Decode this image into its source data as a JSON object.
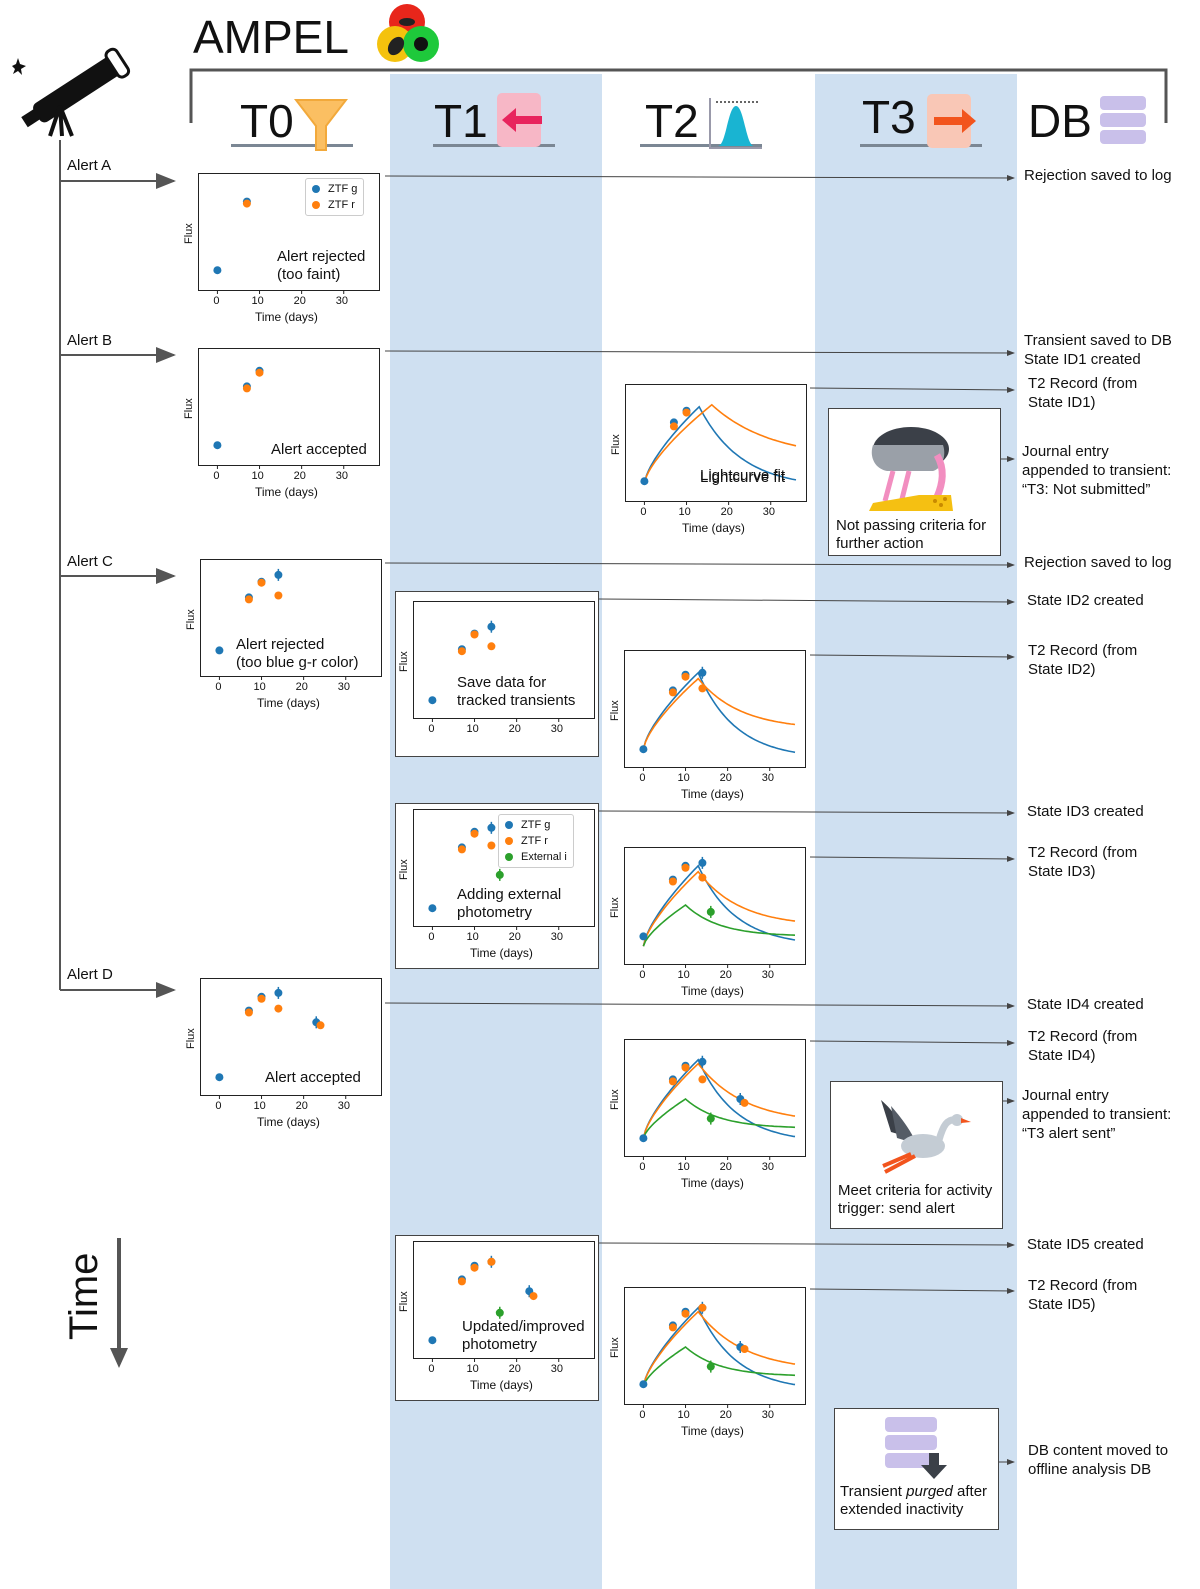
{
  "title": "AMPEL",
  "columns": [
    {
      "label": "T0"
    },
    {
      "label": "T1"
    },
    {
      "label": "T2"
    },
    {
      "label": "T3"
    },
    {
      "label": "DB"
    }
  ],
  "time_label": "Time",
  "alerts": [
    "Alert A",
    "Alert B",
    "Alert C",
    "Alert D"
  ],
  "right_notes": [
    "Rejection saved to log",
    "Transient saved to DB\nState ID1 created",
    "T2 Record (from\nState ID1)",
    "Journal entry\nappended to transient:\n“T3: Not submitted”",
    "Rejection saved to log",
    "State ID2 created",
    "T2 Record (from\nState ID2)",
    "State ID3 created",
    "T2 Record (from\nState ID3)",
    "State ID4 created",
    "T2 Record (from\nState ID4)",
    "Journal entry\nappended to transient:\n“T3 alert sent”",
    "State ID5 created",
    "T2 Record (from\nState ID5)",
    "DB content moved to\noffline analysis DB"
  ],
  "t3_boxes": [
    {
      "pre": "Not passing criteria for\nfurther action",
      "em": "",
      "post": ""
    },
    {
      "pre": "Meet criteria for activity\ntrigger: send alert",
      "em": "",
      "post": ""
    },
    {
      "pre": "Transient ",
      "em": "purged",
      "post": " after\nextended inactivity"
    }
  ],
  "axis": {
    "flux": "Flux",
    "time": "Time (days)",
    "ticks": [
      "0",
      "10",
      "20",
      "30"
    ]
  },
  "legend_ztf": [
    "ZTF g",
    "ZTF r"
  ],
  "legend_ext": [
    "ZTF g",
    "ZTF r",
    "External i"
  ],
  "colors": {
    "g": "#1f77b4",
    "r": "#ff7f0e",
    "i": "#2ca02c",
    "band": "#cfe0f1"
  },
  "chart_data": [
    {
      "type": "scatter",
      "title": "Alert rejected\n(too faint)",
      "xlabel": "Time (days)",
      "ylabel": "Flux",
      "xlim": [
        -2,
        36
      ],
      "ylim": [
        0,
        1
      ],
      "series": [
        {
          "name": "ZTF g",
          "x": [
            0,
            7
          ],
          "y": [
            0.12,
            0.82
          ]
        },
        {
          "name": "ZTF r",
          "x": [
            7
          ],
          "y": [
            0.8
          ]
        }
      ]
    },
    {
      "type": "scatter",
      "title": "Alert accepted",
      "xlabel": "Time (days)",
      "ylabel": "Flux",
      "xlim": [
        -2,
        36
      ],
      "ylim": [
        0,
        1
      ],
      "series": [
        {
          "name": "ZTF g",
          "x": [
            0,
            7,
            10
          ],
          "y": [
            0.12,
            0.72,
            0.88
          ]
        },
        {
          "name": "ZTF r",
          "x": [
            7,
            10
          ],
          "y": [
            0.7,
            0.86
          ]
        }
      ]
    },
    {
      "type": "line",
      "title": "Lightcurve fit",
      "xlabel": "Time (days)",
      "ylabel": "Flux",
      "xlim": [
        -2,
        36
      ],
      "ylim": [
        0,
        1
      ],
      "series": [
        {
          "name": "ZTF g",
          "x": [
            0,
            7,
            10
          ],
          "y": [
            0.12,
            0.72,
            0.84
          ]
        },
        {
          "name": "ZTF r",
          "x": [
            7,
            10
          ],
          "y": [
            0.68,
            0.82
          ]
        }
      ]
    },
    {
      "type": "scatter",
      "title": "Alert rejected\n(too blue g-r color)",
      "xlabel": "Time (days)",
      "ylabel": "Flux",
      "xlim": [
        -2,
        36
      ],
      "ylim": [
        0,
        1
      ],
      "series": [
        {
          "name": "ZTF g",
          "x": [
            0,
            7,
            10,
            14
          ],
          "y": [
            0.18,
            0.72,
            0.88,
            0.95
          ]
        },
        {
          "name": "ZTF r",
          "x": [
            7,
            10,
            14
          ],
          "y": [
            0.7,
            0.87,
            0.74
          ]
        }
      ]
    },
    {
      "type": "scatter",
      "title": "Save data for\ntracked transients",
      "xlabel": "",
      "ylabel": "Flux",
      "xlim": [
        -2,
        36
      ],
      "ylim": [
        0,
        1
      ],
      "series": [
        {
          "name": "ZTF g",
          "x": [
            0,
            7,
            10,
            14
          ],
          "y": [
            0.1,
            0.62,
            0.78,
            0.85
          ]
        },
        {
          "name": "ZTF r",
          "x": [
            7,
            10,
            14
          ],
          "y": [
            0.6,
            0.77,
            0.65
          ]
        }
      ]
    },
    {
      "type": "line",
      "title": "",
      "xlabel": "Time (days)",
      "ylabel": "Flux",
      "xlim": [
        -2,
        36
      ],
      "ylim": [
        0,
        1
      ],
      "series": [
        {
          "name": "ZTF g",
          "x": [
            0,
            7,
            10,
            14
          ],
          "y": [
            0.1,
            0.7,
            0.86,
            0.88
          ]
        },
        {
          "name": "ZTF r",
          "x": [
            7,
            10,
            14
          ],
          "y": [
            0.68,
            0.84,
            0.72
          ]
        }
      ]
    },
    {
      "type": "scatter",
      "title": "Adding external\nphotometry",
      "xlabel": "Time (days)",
      "ylabel": "Flux",
      "xlim": [
        -2,
        36
      ],
      "ylim": [
        0,
        1
      ],
      "series": [
        {
          "name": "ZTF g",
          "x": [
            0,
            7,
            10,
            14
          ],
          "y": [
            0.1,
            0.72,
            0.88,
            0.92
          ]
        },
        {
          "name": "ZTF r",
          "x": [
            7,
            10,
            14
          ],
          "y": [
            0.7,
            0.86,
            0.74
          ]
        },
        {
          "name": "External i",
          "x": [
            16
          ],
          "y": [
            0.44
          ]
        }
      ]
    },
    {
      "type": "line",
      "title": "",
      "xlabel": "Time (days)",
      "ylabel": "Flux",
      "xlim": [
        -2,
        36
      ],
      "ylim": [
        0,
        1
      ],
      "series": [
        {
          "name": "ZTF g",
          "x": [
            0,
            7,
            10,
            14
          ],
          "y": [
            0.2,
            0.78,
            0.92,
            0.95
          ]
        },
        {
          "name": "ZTF r",
          "x": [
            7,
            10,
            14
          ],
          "y": [
            0.76,
            0.9,
            0.8
          ]
        },
        {
          "name": "External i",
          "x": [
            16
          ],
          "y": [
            0.45
          ]
        }
      ]
    },
    {
      "type": "scatter",
      "title": "Alert accepted",
      "xlabel": "Time (days)",
      "ylabel": "Flux",
      "xlim": [
        -2,
        36
      ],
      "ylim": [
        0,
        1
      ],
      "series": [
        {
          "name": "ZTF g",
          "x": [
            0,
            7,
            10,
            14,
            23
          ],
          "y": [
            0.1,
            0.78,
            0.92,
            0.96,
            0.66
          ]
        },
        {
          "name": "ZTF r",
          "x": [
            7,
            10,
            14,
            24
          ],
          "y": [
            0.76,
            0.9,
            0.8,
            0.63
          ]
        }
      ]
    },
    {
      "type": "line",
      "title": "",
      "xlabel": "Time (days)",
      "ylabel": "Flux",
      "xlim": [
        -2,
        36
      ],
      "ylim": [
        0,
        1
      ],
      "series": [
        {
          "name": "ZTF g",
          "x": [
            0,
            7,
            10,
            14,
            23
          ],
          "y": [
            0.1,
            0.7,
            0.84,
            0.88,
            0.5
          ]
        },
        {
          "name": "ZTF r",
          "x": [
            7,
            10,
            14,
            24
          ],
          "y": [
            0.68,
            0.82,
            0.7,
            0.46
          ]
        },
        {
          "name": "External i",
          "x": [
            16
          ],
          "y": [
            0.3
          ]
        }
      ]
    },
    {
      "type": "scatter",
      "title": "Updated/improved\nphotometry",
      "xlabel": "Time (days)",
      "ylabel": "Flux",
      "xlim": [
        -2,
        36
      ],
      "ylim": [
        0,
        1
      ],
      "series": [
        {
          "name": "ZTF g",
          "x": [
            0,
            7,
            10,
            14,
            23
          ],
          "y": [
            0.1,
            0.72,
            0.86,
            0.9,
            0.6
          ]
        },
        {
          "name": "ZTF r",
          "x": [
            7,
            10,
            14,
            24
          ],
          "y": [
            0.7,
            0.84,
            0.9,
            0.55
          ]
        },
        {
          "name": "External i",
          "x": [
            16
          ],
          "y": [
            0.38
          ]
        }
      ]
    },
    {
      "type": "line",
      "title": "",
      "xlabel": "Time (days)",
      "ylabel": "Flux",
      "xlim": [
        -2,
        36
      ],
      "ylim": [
        0,
        1
      ],
      "series": [
        {
          "name": "ZTF g",
          "x": [
            0,
            7,
            10,
            14,
            23
          ],
          "y": [
            0.12,
            0.72,
            0.86,
            0.9,
            0.5
          ]
        },
        {
          "name": "ZTF r",
          "x": [
            7,
            10,
            14,
            24
          ],
          "y": [
            0.7,
            0.84,
            0.9,
            0.48
          ]
        },
        {
          "name": "External i",
          "x": [
            16
          ],
          "y": [
            0.3
          ]
        }
      ]
    }
  ]
}
